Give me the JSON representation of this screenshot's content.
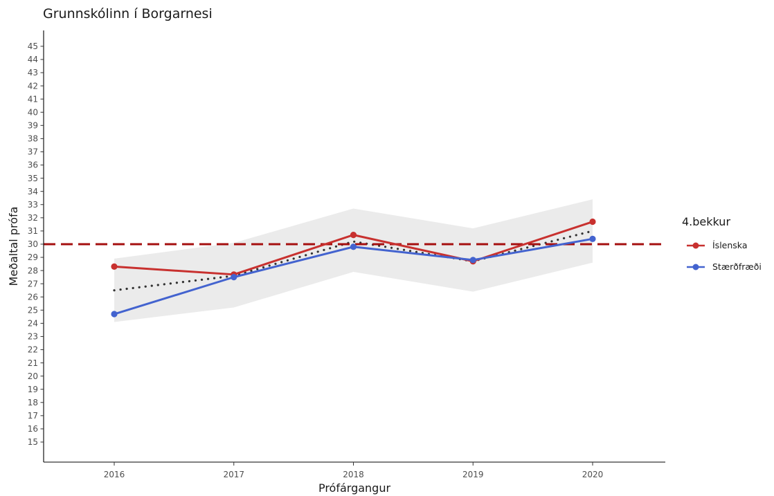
{
  "chart_data": {
    "type": "line",
    "title": "Grunnskólinn í Borgarnesi",
    "xlabel": "Prófárgangur",
    "ylabel": "Meðaltal prófa",
    "x": [
      2016,
      2017,
      2018,
      2019,
      2020
    ],
    "xticks": [
      "2016",
      "2017",
      "2018",
      "2019",
      "2020"
    ],
    "ylim": [
      14,
      46
    ],
    "yticks": [
      15,
      16,
      17,
      18,
      19,
      20,
      21,
      22,
      23,
      24,
      25,
      26,
      27,
      28,
      29,
      30,
      31,
      32,
      33,
      34,
      35,
      36,
      37,
      38,
      39,
      40,
      41,
      42,
      43,
      44,
      45
    ],
    "grid": false,
    "legend": {
      "title": "4.bekkur",
      "position": "right"
    },
    "series": [
      {
        "name": "Íslenska",
        "color": "#c8312f",
        "values": [
          28.3,
          27.7,
          30.7,
          28.7,
          31.7
        ]
      },
      {
        "name": "Stærðfræði",
        "color": "#4363cf",
        "values": [
          24.7,
          27.5,
          29.8,
          28.8,
          30.4
        ]
      }
    ],
    "trend": {
      "color": "#333333",
      "values": [
        26.5,
        27.6,
        30.2,
        28.7,
        31.0
      ]
    },
    "band": {
      "color": "#ebebeb",
      "lower": [
        24.1,
        25.2,
        27.9,
        26.4,
        28.6
      ],
      "upper": [
        28.9,
        30.1,
        32.7,
        31.2,
        33.4
      ]
    },
    "reference_line": {
      "value": 30,
      "color": "#a50f0f"
    }
  }
}
